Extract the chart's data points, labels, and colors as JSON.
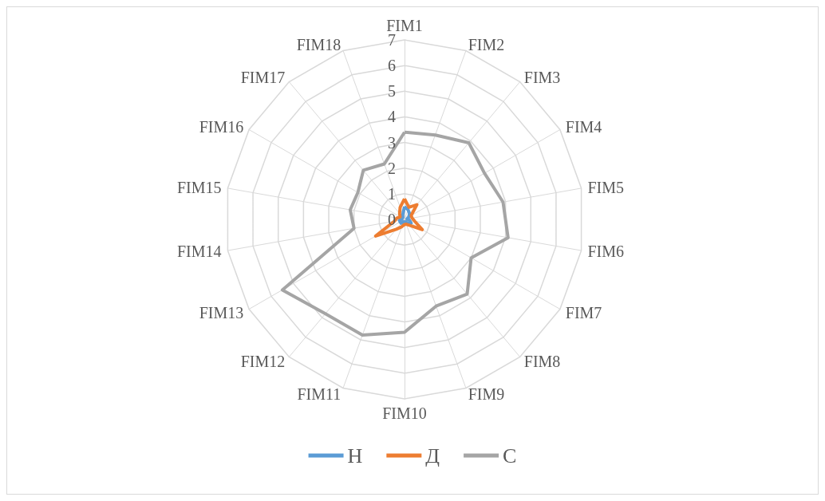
{
  "chart_data": {
    "type": "radar",
    "categories": [
      "FIM1",
      "FIM2",
      "FIM3",
      "FIM4",
      "FIM5",
      "FIM6",
      "FIM7",
      "FIM8",
      "FIM9",
      "FIM10",
      "FIM11",
      "FIM12",
      "FIM13",
      "FIM14",
      "FIM15",
      "FIM16",
      "FIM17",
      "FIM18"
    ],
    "series": [
      {
        "name": "Н",
        "color": "#5b9bd5",
        "values": [
          0.5,
          0.4,
          0.3,
          0.2,
          0.1,
          0.2,
          0.3,
          0.2,
          0.1,
          0.1,
          0.1,
          0.2,
          0.2,
          0.2,
          0.1,
          0.1,
          0.1,
          0.2
        ]
      },
      {
        "name": "Д",
        "color": "#ed7d31",
        "values": [
          0.8,
          0.5,
          0.75,
          0.3,
          0.3,
          0.4,
          0.8,
          0.3,
          0.2,
          0.2,
          0.3,
          0.5,
          1.3,
          0.4,
          0.3,
          0.2,
          0.3,
          0.5
        ]
      },
      {
        "name": "С",
        "color": "#a5a5a5",
        "values": [
          3.4,
          3.5,
          3.9,
          3.6,
          3.9,
          4.1,
          3.0,
          3.8,
          3.6,
          4.4,
          4.8,
          4.8,
          5.5,
          2.0,
          2.15,
          2.1,
          2.5,
          2.3
        ]
      }
    ],
    "ylim": [
      0,
      7
    ],
    "yticks": [
      0,
      1,
      2,
      3,
      4,
      5,
      6,
      7
    ],
    "grid": true,
    "legend": "bottom",
    "marker": "none",
    "line_style": "solid"
  }
}
